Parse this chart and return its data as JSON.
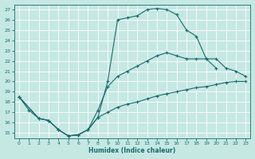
{
  "xlabel": "Humidex (Indice chaleur)",
  "xlim": [
    -0.5,
    23.5
  ],
  "ylim": [
    14.5,
    27.5
  ],
  "xticks": [
    0,
    1,
    2,
    3,
    4,
    5,
    6,
    7,
    8,
    9,
    10,
    11,
    12,
    13,
    14,
    15,
    16,
    17,
    18,
    19,
    20,
    21,
    22,
    23
  ],
  "yticks": [
    15,
    16,
    17,
    18,
    19,
    20,
    21,
    22,
    23,
    24,
    25,
    26,
    27
  ],
  "background_color": "#c5e8e3",
  "grid_color": "#b0d8d2",
  "line_color": "#1a6b6b",
  "line1_x": [
    0,
    1,
    2,
    3,
    4,
    5,
    6,
    7,
    8,
    9,
    10,
    11,
    12,
    13,
    14,
    15,
    16,
    17,
    18,
    19,
    20
  ],
  "line1_y": [
    18.5,
    17.2,
    16.4,
    16.2,
    15.3,
    14.7,
    14.8,
    15.3,
    16.5,
    20.0,
    26.0,
    26.2,
    26.4,
    27.0,
    27.1,
    27.0,
    26.5,
    25.0,
    24.4,
    22.2,
    21.3
  ],
  "line2_x": [
    0,
    2,
    3,
    4,
    5,
    6,
    7,
    8,
    9,
    10,
    11,
    12,
    13,
    14,
    15,
    16,
    17,
    18,
    19,
    20,
    21,
    22,
    23
  ],
  "line2_y": [
    18.5,
    16.4,
    16.2,
    15.3,
    14.7,
    14.8,
    15.3,
    17.2,
    19.5,
    20.5,
    21.0,
    21.5,
    22.0,
    22.5,
    22.8,
    22.5,
    22.2,
    22.2,
    22.2,
    22.2,
    21.3,
    21.0,
    20.5
  ],
  "line3_x": [
    0,
    2,
    3,
    4,
    5,
    6,
    7,
    8,
    9,
    10,
    11,
    12,
    13,
    14,
    15,
    16,
    17,
    18,
    19,
    20,
    21,
    22,
    23
  ],
  "line3_y": [
    18.5,
    16.4,
    16.2,
    15.3,
    14.7,
    14.8,
    15.3,
    16.5,
    17.0,
    17.5,
    17.8,
    18.0,
    18.3,
    18.6,
    18.8,
    19.0,
    19.2,
    19.4,
    19.5,
    19.7,
    19.9,
    20.0,
    20.0
  ]
}
